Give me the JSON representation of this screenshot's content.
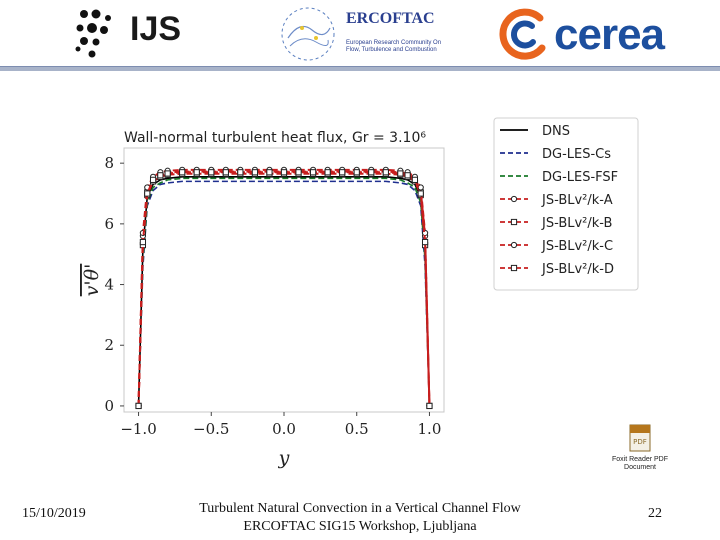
{
  "header": {
    "ijs_logo_text": "IJS",
    "ercoftac_title": "ERCOFTAC",
    "ercoftac_subtitle_lines": [
      "European Research Community On",
      "Flow, Turbulence and Combustion"
    ],
    "cerea_logo_text": "cerea"
  },
  "pdf_icon": {
    "line1": "Foxit Reader PDF",
    "line2": "Document"
  },
  "footer": {
    "date": "15/10/2019",
    "line1": "Turbulent Natural Convection in a Vertical Channel Flow",
    "line2": "ERCOFTAC SIG15 Workshop, Ljubljana",
    "page_number": "22"
  },
  "chart_data": {
    "type": "line",
    "title": "Wall-normal turbulent heat flux, Gr = 3.10⁶",
    "xlabel": "y",
    "ylabel": "v'θ'",
    "xlim": [
      -1.1,
      1.1
    ],
    "ylim": [
      -0.2,
      8.5
    ],
    "xticks": [
      "−1.0",
      "−0.5",
      "0.0",
      "0.5",
      "1.0"
    ],
    "xtick_values": [
      -1.0,
      -0.5,
      0.0,
      0.5,
      1.0
    ],
    "yticks": [
      "0",
      "2",
      "4",
      "6",
      "8"
    ],
    "ytick_values": [
      0,
      2,
      4,
      6,
      8
    ],
    "grid": false,
    "legend_position": "right",
    "x": [
      -1.0,
      -0.97,
      -0.94,
      -0.9,
      -0.85,
      -0.8,
      -0.7,
      -0.6,
      -0.5,
      -0.4,
      -0.3,
      -0.2,
      -0.1,
      0.0,
      0.1,
      0.2,
      0.3,
      0.4,
      0.5,
      0.6,
      0.7,
      0.8,
      0.85,
      0.9,
      0.94,
      0.97,
      1.0
    ],
    "series": [
      {
        "name": "DNS",
        "color": "#000000",
        "dash": "solid",
        "marker": "none",
        "values": [
          0.0,
          5.2,
          6.9,
          7.3,
          7.45,
          7.5,
          7.55,
          7.55,
          7.55,
          7.55,
          7.55,
          7.55,
          7.55,
          7.55,
          7.55,
          7.55,
          7.55,
          7.55,
          7.55,
          7.55,
          7.55,
          7.5,
          7.45,
          7.3,
          6.9,
          5.2,
          0.0
        ]
      },
      {
        "name": "DG-LES-Cs",
        "color": "#1f2f8f",
        "dash": "dashed",
        "marker": "none",
        "values": [
          0.0,
          4.6,
          6.6,
          7.1,
          7.3,
          7.35,
          7.4,
          7.4,
          7.4,
          7.4,
          7.4,
          7.4,
          7.4,
          7.4,
          7.4,
          7.4,
          7.4,
          7.4,
          7.4,
          7.4,
          7.4,
          7.35,
          7.3,
          7.1,
          6.6,
          4.6,
          0.0
        ]
      },
      {
        "name": "DG-LES-FSF",
        "color": "#1a7a2a",
        "dash": "dashed",
        "marker": "none",
        "values": [
          0.0,
          4.8,
          6.7,
          7.2,
          7.35,
          7.45,
          7.5,
          7.5,
          7.5,
          7.5,
          7.5,
          7.5,
          7.5,
          7.5,
          7.5,
          7.5,
          7.5,
          7.5,
          7.5,
          7.5,
          7.5,
          7.45,
          7.35,
          7.2,
          6.7,
          4.8,
          0.0
        ]
      },
      {
        "name": "JS-BLv²/k-A",
        "color": "#c81e1e",
        "dash": "dashed",
        "marker": "circle",
        "values": [
          0.0,
          5.6,
          7.1,
          7.5,
          7.65,
          7.7,
          7.72,
          7.72,
          7.72,
          7.72,
          7.72,
          7.72,
          7.72,
          7.72,
          7.72,
          7.72,
          7.72,
          7.72,
          7.72,
          7.72,
          7.72,
          7.7,
          7.65,
          7.5,
          7.1,
          5.6,
          0.0
        ]
      },
      {
        "name": "JS-BLv²/k-B",
        "color": "#c81e1e",
        "dash": "dashed",
        "marker": "square",
        "values": [
          0.0,
          5.3,
          6.95,
          7.4,
          7.55,
          7.62,
          7.65,
          7.65,
          7.65,
          7.65,
          7.65,
          7.65,
          7.65,
          7.65,
          7.65,
          7.65,
          7.65,
          7.65,
          7.65,
          7.65,
          7.65,
          7.62,
          7.55,
          7.4,
          6.95,
          5.3,
          0.0
        ]
      },
      {
        "name": "JS-BLv²/k-C",
        "color": "#c81e1e",
        "dash": "dashed",
        "marker": "circle",
        "values": [
          0.0,
          5.7,
          7.2,
          7.55,
          7.7,
          7.75,
          7.78,
          7.78,
          7.78,
          7.78,
          7.78,
          7.78,
          7.78,
          7.78,
          7.78,
          7.78,
          7.78,
          7.78,
          7.78,
          7.78,
          7.78,
          7.75,
          7.7,
          7.55,
          7.2,
          5.7,
          0.0
        ]
      },
      {
        "name": "JS-BLv²/k-D",
        "color": "#c81e1e",
        "dash": "dashed",
        "marker": "square",
        "values": [
          0.0,
          5.4,
          7.0,
          7.45,
          7.6,
          7.66,
          7.7,
          7.7,
          7.7,
          7.7,
          7.7,
          7.7,
          7.7,
          7.7,
          7.7,
          7.7,
          7.7,
          7.7,
          7.7,
          7.7,
          7.7,
          7.66,
          7.6,
          7.45,
          7.0,
          5.4,
          0.0
        ]
      }
    ]
  }
}
